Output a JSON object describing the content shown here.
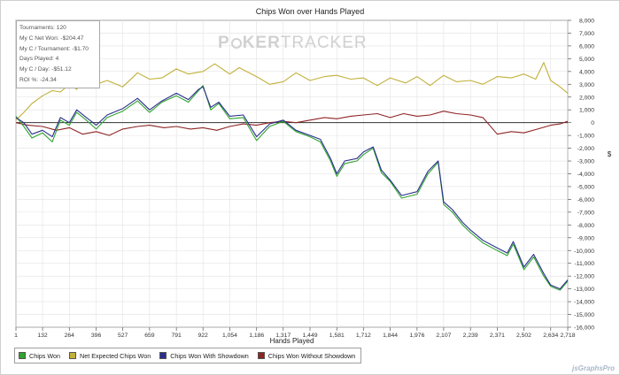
{
  "colors": {
    "chips_won": "#2fa32f",
    "net_expected": "#c2b03a",
    "with_showdown": "#2a2f8f",
    "without_showdown": "#8e2424",
    "grid": "#e2e2e2",
    "zero_line": "#333333"
  },
  "stats": {
    "tournaments": "Tournaments: 120",
    "net_won": "My C Net Won: -$204.47",
    "per_tournament": "My C / Tournament: -$1.70",
    "days_played": "Days Played: 4",
    "per_day": "My C / Day: -$51.12",
    "roi": "ROI %: -24.34"
  },
  "watermark": {
    "p": "P",
    "ker": "KER",
    "tracker": "TRACKER"
  },
  "corner_logo": "jsGraphsPro",
  "chart_data": {
    "type": "line",
    "title": "Chips Won over Hands Played",
    "xlabel": "Hands Played",
    "ylabel": "$",
    "xlim": [
      1,
      2718
    ],
    "ylim": [
      -16000,
      8000
    ],
    "x_ticks": [
      1,
      132,
      264,
      396,
      527,
      659,
      791,
      922,
      1054,
      1186,
      1317,
      1449,
      1581,
      1712,
      1844,
      1976,
      2107,
      2239,
      2371,
      2502,
      2634,
      2718
    ],
    "x_tick_labels": [
      "1",
      "132",
      "264",
      "396",
      "527",
      "659",
      "791",
      "922",
      "1,054",
      "1,186",
      "1,317",
      "1,449",
      "1,581",
      "1,712",
      "1,844",
      "1,976",
      "2,107",
      "2,239",
      "2,371",
      "2,502",
      "2,634",
      "2,718"
    ],
    "y_ticks": [
      8000,
      7000,
      6000,
      5000,
      4000,
      3000,
      2000,
      1000,
      0,
      -1000,
      -2000,
      -3000,
      -4000,
      -5000,
      -6000,
      -7000,
      -8000,
      -9000,
      -10000,
      -11000,
      -12000,
      -13000,
      -14000,
      -15000,
      -16000
    ],
    "y_tick_labels": [
      "8,000",
      "7,000",
      "6,000",
      "5,000",
      "4,000",
      "3,000",
      "2,000",
      "1,000",
      "0",
      "-1,000",
      "-2,000",
      "-3,000",
      "-4,000",
      "-5,000",
      "-6,000",
      "-7,000",
      "-8,000",
      "-9,000",
      "-10,000",
      "-11,000",
      "-12,000",
      "-13,000",
      "-14,000",
      "-15,000",
      "-16,000"
    ],
    "grid": true,
    "legend_position": "bottom-left",
    "series": [
      {
        "name": "Chips Won",
        "color_key": "chips_won",
        "x": [
          1,
          40,
          80,
          132,
          180,
          220,
          264,
          300,
          340,
          396,
          450,
          527,
          600,
          659,
          720,
          791,
          850,
          900,
          922,
          960,
          1000,
          1054,
          1120,
          1186,
          1250,
          1317,
          1380,
          1449,
          1500,
          1550,
          1581,
          1620,
          1680,
          1712,
          1760,
          1800,
          1844,
          1900,
          1976,
          2030,
          2080,
          2107,
          2150,
          2200,
          2239,
          2300,
          2371,
          2420,
          2450,
          2502,
          2550,
          2600,
          2634,
          2680,
          2718
        ],
        "y": [
          500,
          -300,
          -1200,
          -800,
          -1500,
          200,
          -200,
          800,
          300,
          -500,
          400,
          900,
          1700,
          800,
          1600,
          2100,
          1600,
          2500,
          2900,
          1000,
          1500,
          300,
          400,
          -1400,
          -300,
          100,
          -700,
          -1100,
          -1500,
          -3000,
          -4200,
          -3200,
          -3000,
          -2500,
          -2000,
          -3900,
          -4600,
          -5900,
          -5600,
          -4000,
          -3100,
          -6400,
          -7000,
          -8000,
          -8600,
          -9400,
          -10000,
          -10400,
          -9500,
          -11500,
          -10500,
          -12000,
          -12800,
          -13100,
          -12400
        ]
      },
      {
        "name": "Net Expected Chips Won",
        "color_key": "net_expected",
        "x": [
          1,
          40,
          80,
          132,
          180,
          220,
          264,
          300,
          340,
          396,
          450,
          527,
          600,
          659,
          720,
          791,
          850,
          922,
          980,
          1054,
          1100,
          1186,
          1250,
          1317,
          1380,
          1449,
          1520,
          1581,
          1650,
          1712,
          1780,
          1844,
          1920,
          1976,
          2040,
          2107,
          2170,
          2239,
          2300,
          2371,
          2440,
          2502,
          2560,
          2600,
          2634,
          2680,
          2718
        ],
        "y": [
          200,
          800,
          1500,
          2100,
          2500,
          2400,
          3000,
          2600,
          3500,
          3000,
          3300,
          2800,
          3900,
          3400,
          3500,
          4200,
          3800,
          4000,
          4600,
          3800,
          4300,
          3600,
          3000,
          3200,
          3900,
          3300,
          3600,
          3700,
          3400,
          3500,
          2900,
          3500,
          3100,
          3600,
          2900,
          3700,
          3200,
          3300,
          3000,
          3600,
          3500,
          3800,
          3400,
          4700,
          3300,
          2800,
          2300
        ]
      },
      {
        "name": "Chips Won With Showdown",
        "color_key": "with_showdown",
        "x": [
          1,
          40,
          80,
          132,
          180,
          220,
          264,
          300,
          340,
          396,
          450,
          527,
          600,
          659,
          720,
          791,
          850,
          900,
          922,
          960,
          1000,
          1054,
          1120,
          1186,
          1250,
          1317,
          1380,
          1449,
          1500,
          1550,
          1581,
          1620,
          1680,
          1712,
          1760,
          1800,
          1844,
          1900,
          1976,
          2030,
          2080,
          2107,
          2150,
          2200,
          2239,
          2300,
          2371,
          2420,
          2450,
          2502,
          2550,
          2600,
          2634,
          2680,
          2718
        ],
        "y": [
          400,
          0,
          -900,
          -600,
          -1100,
          400,
          0,
          1000,
          500,
          -200,
          600,
          1100,
          1900,
          1000,
          1700,
          2300,
          1800,
          2600,
          2800,
          1200,
          1600,
          500,
          600,
          -1100,
          -100,
          200,
          -600,
          -1000,
          -1300,
          -2800,
          -4000,
          -3000,
          -2800,
          -2300,
          -1900,
          -3700,
          -4500,
          -5700,
          -5400,
          -3800,
          -3000,
          -6200,
          -6800,
          -7800,
          -8400,
          -9200,
          -9800,
          -10200,
          -9300,
          -11300,
          -10300,
          -11800,
          -12700,
          -13000,
          -12300
        ]
      },
      {
        "name": "Chips Won Without Showdown",
        "color_key": "without_showdown",
        "x": [
          1,
          60,
          132,
          200,
          264,
          330,
          396,
          460,
          527,
          600,
          659,
          730,
          791,
          860,
          922,
          990,
          1054,
          1120,
          1186,
          1250,
          1317,
          1380,
          1449,
          1520,
          1581,
          1650,
          1712,
          1780,
          1844,
          1910,
          1976,
          2040,
          2107,
          2170,
          2239,
          2300,
          2371,
          2440,
          2502,
          2570,
          2634,
          2680,
          2718
        ],
        "y": [
          0,
          -200,
          -300,
          -600,
          -400,
          -900,
          -700,
          -1000,
          -500,
          -300,
          -200,
          -400,
          -300,
          -500,
          -400,
          -600,
          -300,
          -100,
          -200,
          0,
          100,
          0,
          200,
          400,
          300,
          500,
          600,
          700,
          400,
          700,
          500,
          600,
          900,
          700,
          600,
          400,
          -900,
          -700,
          -800,
          -500,
          -200,
          -100,
          100
        ]
      }
    ]
  }
}
